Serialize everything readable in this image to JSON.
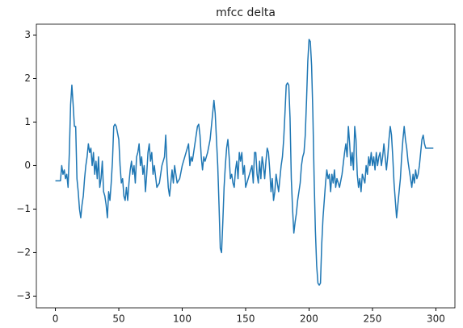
{
  "chart_data": {
    "type": "line",
    "title": "mfcc delta",
    "x": [
      0,
      2,
      4,
      5,
      6,
      7,
      8,
      9,
      10,
      11,
      12,
      13,
      14,
      15,
      16,
      17,
      18,
      19,
      20,
      21,
      22,
      23,
      24,
      25,
      26,
      27,
      28,
      29,
      30,
      31,
      32,
      33,
      34,
      35,
      36,
      37,
      38,
      39,
      40,
      41,
      42,
      43,
      44,
      45,
      46,
      47,
      48,
      50,
      51,
      52,
      53,
      54,
      55,
      56,
      57,
      58,
      59,
      60,
      61,
      62,
      63,
      64,
      65,
      66,
      67,
      68,
      69,
      70,
      71,
      72,
      73,
      74,
      75,
      76,
      77,
      78,
      80,
      82,
      84,
      86,
      87,
      88,
      89,
      90,
      91,
      92,
      93,
      94,
      96,
      98,
      100,
      102,
      104,
      105,
      106,
      107,
      108,
      110,
      112,
      113,
      114,
      115,
      116,
      117,
      118,
      120,
      122,
      124,
      125,
      126,
      127,
      128,
      129,
      130,
      131,
      132,
      133,
      134,
      135,
      136,
      137,
      138,
      139,
      140,
      141,
      142,
      143,
      144,
      145,
      146,
      147,
      148,
      149,
      150,
      152,
      154,
      155,
      156,
      157,
      158,
      159,
      160,
      161,
      162,
      163,
      164,
      165,
      166,
      167,
      168,
      169,
      170,
      171,
      172,
      173,
      174,
      175,
      176,
      177,
      178,
      179,
      180,
      181,
      182,
      183,
      184,
      185,
      186,
      187,
      188,
      189,
      190,
      191,
      192,
      193,
      194,
      195,
      196,
      197,
      198,
      199,
      200,
      201,
      202,
      203,
      204,
      205,
      206,
      207,
      208,
      209,
      210,
      211,
      212,
      213,
      214,
      215,
      216,
      217,
      218,
      219,
      220,
      221,
      222,
      224,
      226,
      228,
      229,
      230,
      231,
      232,
      233,
      234,
      235,
      236,
      237,
      238,
      239,
      240,
      241,
      242,
      244,
      245,
      246,
      247,
      248,
      249,
      250,
      251,
      252,
      253,
      254,
      255,
      256,
      257,
      258,
      259,
      260,
      261,
      262,
      263,
      264,
      265,
      266,
      267,
      268,
      269,
      270,
      271,
      272,
      273,
      274,
      275,
      276,
      277,
      278,
      279,
      280,
      281,
      282,
      283,
      284,
      285,
      286,
      287,
      288,
      289,
      290,
      291,
      292,
      294,
      296,
      298
    ],
    "series": [
      {
        "name": "mfcc delta",
        "color": "#1f77b4",
        "values": [
          -0.35,
          -0.35,
          -0.35,
          0.0,
          -0.2,
          -0.1,
          -0.3,
          -0.2,
          -0.5,
          0.3,
          1.4,
          1.85,
          1.4,
          0.9,
          0.9,
          -0.3,
          -0.6,
          -1.0,
          -1.2,
          -0.9,
          -0.7,
          -0.3,
          0.0,
          0.2,
          0.5,
          0.3,
          0.4,
          0.0,
          0.3,
          -0.2,
          0.1,
          -0.3,
          0.2,
          -0.5,
          -0.3,
          0.1,
          -0.6,
          -0.7,
          -0.9,
          -1.2,
          -0.6,
          -0.8,
          -0.4,
          0.1,
          0.9,
          0.95,
          0.9,
          0.6,
          0.0,
          -0.4,
          -0.3,
          -0.7,
          -0.8,
          -0.5,
          -0.8,
          -0.4,
          -0.1,
          0.1,
          -0.2,
          0.0,
          -0.4,
          0.2,
          0.3,
          0.5,
          0.0,
          0.2,
          -0.2,
          0.0,
          -0.6,
          -0.2,
          0.3,
          0.5,
          0.1,
          0.3,
          -0.2,
          0.0,
          -0.5,
          -0.4,
          0.0,
          0.2,
          0.7,
          0.0,
          -0.5,
          -0.7,
          -0.4,
          -0.1,
          -0.4,
          0.0,
          -0.4,
          -0.3,
          0.0,
          0.2,
          0.4,
          0.5,
          0.0,
          0.2,
          0.1,
          0.5,
          0.9,
          0.95,
          0.7,
          0.2,
          -0.1,
          0.2,
          0.1,
          0.3,
          0.6,
          1.2,
          1.5,
          1.2,
          0.6,
          0.0,
          -0.9,
          -1.9,
          -2.0,
          -1.3,
          -0.5,
          0.0,
          0.4,
          0.6,
          0.2,
          -0.3,
          -0.2,
          -0.4,
          -0.5,
          -0.1,
          0.1,
          -0.3,
          0.3,
          0.1,
          0.3,
          -0.2,
          0.0,
          -0.5,
          -0.3,
          -0.1,
          0.0,
          -0.4,
          0.3,
          0.3,
          -0.2,
          -0.4,
          0.1,
          -0.3,
          0.2,
          0.0,
          -0.3,
          0.1,
          0.4,
          0.3,
          -0.1,
          -0.6,
          -0.3,
          -0.8,
          -0.6,
          -0.2,
          -0.4,
          -0.6,
          -0.3,
          0.0,
          0.2,
          0.6,
          1.2,
          1.85,
          1.9,
          1.85,
          1.1,
          -0.3,
          -1.0,
          -1.55,
          -1.3,
          -1.1,
          -0.8,
          -0.6,
          -0.4,
          0.0,
          0.2,
          0.3,
          0.7,
          1.5,
          2.4,
          2.9,
          2.85,
          2.3,
          1.2,
          -0.3,
          -1.5,
          -2.3,
          -2.7,
          -2.75,
          -2.7,
          -1.8,
          -1.2,
          -0.8,
          -0.4,
          -0.1,
          -0.3,
          -0.2,
          -0.6,
          -0.2,
          -0.4,
          -0.1,
          -0.5,
          -0.3,
          -0.5,
          -0.2,
          0.3,
          0.5,
          0.2,
          0.9,
          0.5,
          0.0,
          0.3,
          -0.1,
          0.9,
          0.6,
          -0.2,
          -0.5,
          -0.3,
          -0.6,
          -0.2,
          -0.4,
          0.0,
          -0.2,
          0.2,
          0.0,
          0.3,
          0.0,
          0.2,
          -0.1,
          0.3,
          0.0,
          0.2,
          0.3,
          0.0,
          0.2,
          0.5,
          0.2,
          -0.1,
          0.2,
          0.6,
          0.9,
          0.7,
          0.2,
          -0.4,
          -0.8,
          -1.2,
          -0.9,
          -0.6,
          -0.3,
          0.2,
          0.6,
          0.9,
          0.6,
          0.4,
          0.1,
          -0.1,
          -0.3,
          -0.5,
          -0.2,
          -0.4,
          -0.1,
          -0.3,
          -0.2,
          0.0,
          0.3,
          0.6,
          0.7,
          0.5,
          0.4,
          0.4,
          0.4,
          0.4
        ]
      }
    ],
    "xlim": [
      -15,
      315
    ],
    "xticks": [
      0,
      50,
      100,
      150,
      200,
      250,
      300
    ],
    "ylim": [
      -3.27,
      3.25
    ],
    "yticks": [
      -3,
      -2,
      -1,
      0,
      1,
      2,
      3
    ]
  }
}
